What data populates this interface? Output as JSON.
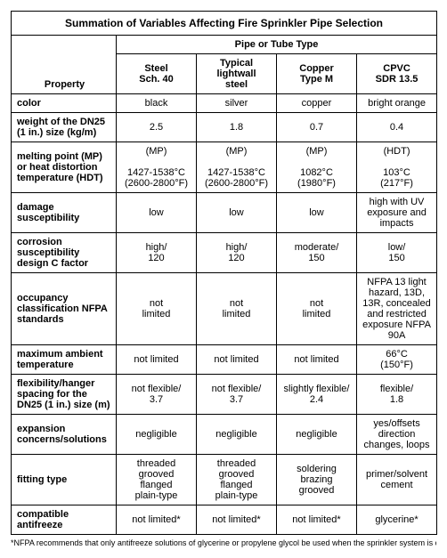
{
  "title": "Summation of Variables Affecting Fire Sprinkler Pipe Selection",
  "group_header": "Pipe or Tube Type",
  "property_label": "Property",
  "column_headers": [
    "Steel\nSch. 40",
    "Typical\nlightwall\nsteel",
    "Copper\nType M",
    "CPVC\nSDR 13.5"
  ],
  "rows": [
    {
      "prop": "color",
      "cells": [
        "black",
        "silver",
        "copper",
        "bright orange"
      ]
    },
    {
      "prop": "weight of the DN25 (1 in.) size (kg/m)",
      "cells": [
        "2.5",
        "1.8",
        "0.7",
        "0.4"
      ]
    },
    {
      "prop": "melting point (MP) or heat distortion temperature (HDT)",
      "cells": [
        "(MP)\n\n1427-1538°C\n(2600-2800°F)",
        "(MP)\n\n1427-1538°C\n(2600-2800°F)",
        "(MP)\n\n1082°C\n(1980°F)",
        "(HDT)\n\n103°C\n(217°F)"
      ]
    },
    {
      "prop": "damage susceptibility",
      "cells": [
        "low",
        "low",
        "low",
        "high with UV exposure and impacts"
      ]
    },
    {
      "prop": "corrosion susceptibility design C factor",
      "cells": [
        "high/\n120",
        "high/\n120",
        "moderate/\n150",
        "low/\n150"
      ]
    },
    {
      "prop": "occupancy classification NFPA standards",
      "cells": [
        "not\nlimited",
        "not\nlimited",
        "not\nlimited",
        "NFPA 13 light hazard, 13D, 13R, concealed and restricted exposure NFPA 90A"
      ]
    },
    {
      "prop": "maximum ambient temperature",
      "cells": [
        "not limited",
        "not limited",
        "not limited",
        "66°C\n(150°F)"
      ]
    },
    {
      "prop": "flexibility/hanger spacing for the DN25 (1 in.) size (m)",
      "cells": [
        "not flexible/\n3.7",
        "not flexible/\n3.7",
        "slightly flexible/\n2.4",
        "flexible/\n1.8"
      ]
    },
    {
      "prop": "expansion concerns/solutions",
      "cells": [
        "negligible",
        "negligible",
        "negligible",
        "yes/offsets direction changes, loops"
      ]
    },
    {
      "prop": "fitting type",
      "cells": [
        "threaded\ngrooved\nflanged\nplain-type",
        "threaded\ngrooved\nflanged\nplain-type",
        "soldering\nbrazing\ngrooved",
        "primer/solvent\ncement"
      ]
    },
    {
      "prop": "compatible antifreeze",
      "cells": [
        "not limited*",
        "not limited*",
        "not limited*",
        "glycerine*"
      ]
    }
  ],
  "footnote": "*NFPA recommends that only antifreeze solutions of glycerine or propylene glycol be used when the sprinkler system is conn"
}
